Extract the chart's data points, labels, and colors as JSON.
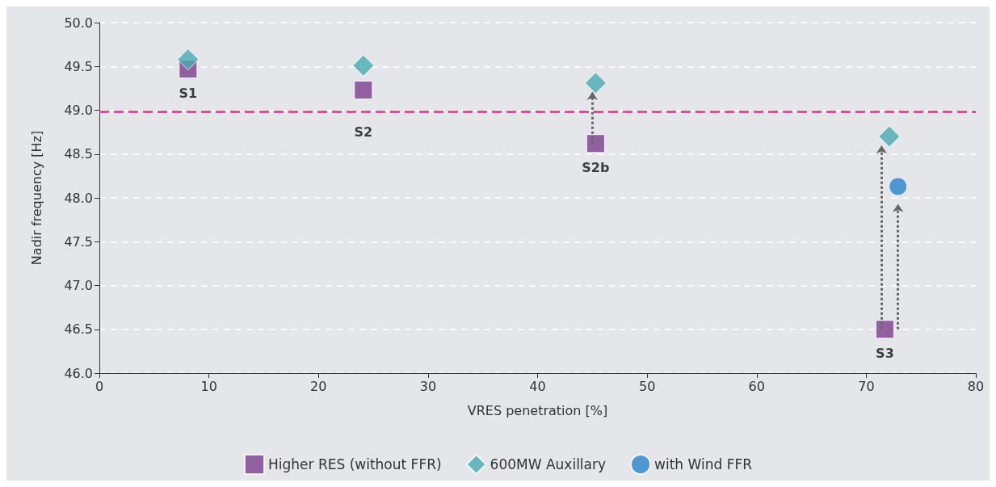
{
  "chart_data": {
    "type": "scatter",
    "xlabel": "VRES penetration [%]",
    "ylabel": "Nadir frequency [Hz]",
    "xlim": [
      0,
      80
    ],
    "xticks": [
      0,
      10,
      20,
      30,
      40,
      50,
      60,
      70,
      80
    ],
    "ylim": [
      46,
      50
    ],
    "yticks": [
      {
        "value": 46,
        "label": "46.0"
      },
      {
        "value": 46.5,
        "label": "46.5"
      },
      {
        "value": 47,
        "label": "47.0"
      },
      {
        "value": 47.5,
        "label": "47.5"
      },
      {
        "value": 48,
        "label": "48.0"
      },
      {
        "value": 48.5,
        "label": "48.5"
      },
      {
        "value": 49,
        "label": "49.0"
      },
      {
        "value": 49.5,
        "label": "49.5"
      },
      {
        "value": 50,
        "label": "50.0"
      }
    ],
    "grid": "y",
    "legend": "bottom",
    "series": [
      {
        "name": "Higher RES (without FFR)",
        "color": "#7b3f8f",
        "marker": "square",
        "x": [
          8.1,
          24.1,
          45.3,
          71.7
        ],
        "values": [
          49.47,
          49.23,
          48.62,
          46.5
        ]
      },
      {
        "name": "600MW Auxillary",
        "color": "#4aabb0",
        "marker": "diamond",
        "x": [
          8.1,
          24.1,
          45.3,
          72.1
        ],
        "values": [
          49.58,
          49.51,
          49.31,
          48.7
        ]
      },
      {
        "name": "with Wind FFR",
        "color": "#2b82c9",
        "marker": "circle",
        "x": [
          72.9
        ],
        "values": [
          48.13
        ]
      }
    ],
    "ref_lines": [
      {
        "axis": "y",
        "value": 48.98,
        "color": "#d6509a",
        "line_style": "dashed"
      }
    ],
    "annotations": [
      {
        "text": "S1",
        "x": 8.1,
        "y": 49.47
      },
      {
        "text": "S2",
        "x": 24.1,
        "y": 49.23
      },
      {
        "text": "S2b",
        "x": 45.3,
        "y": 48.62
      },
      {
        "text": "S3",
        "x": 71.7,
        "y": 46.5
      }
    ]
  }
}
